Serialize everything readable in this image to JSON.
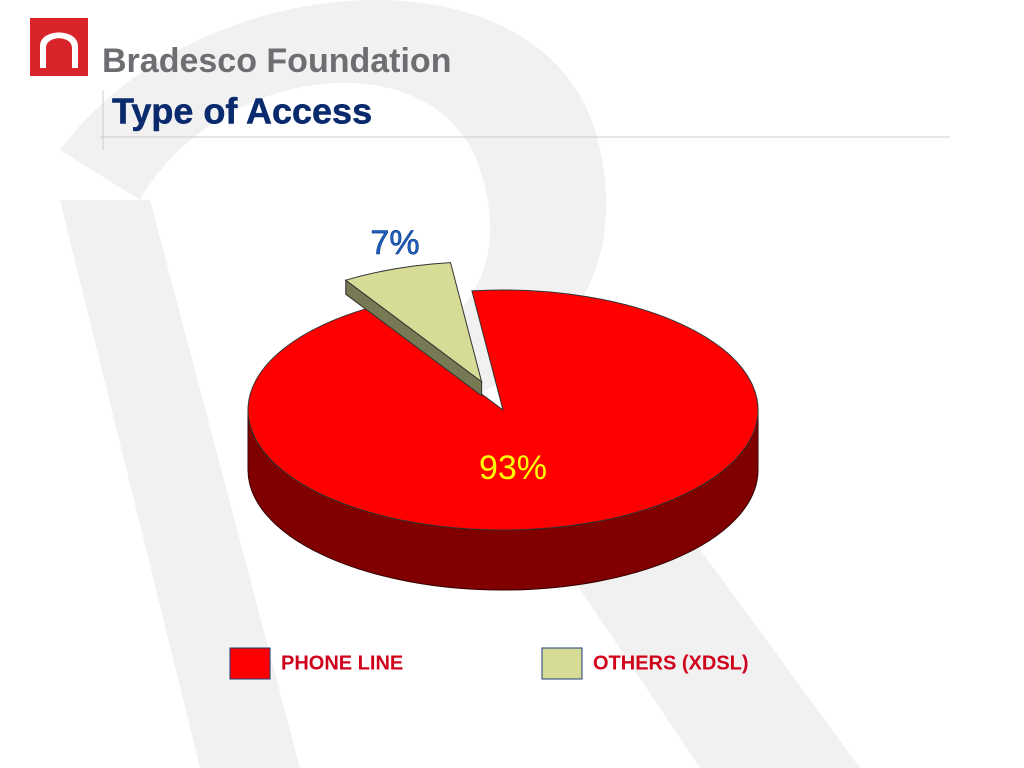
{
  "header": {
    "brand": "Bradesco Foundation"
  },
  "chart_data": {
    "type": "pie",
    "title": "Type of Access",
    "categories": [
      "PHONE LINE",
      "OTHERS (XDSL)"
    ],
    "values": [
      93,
      7
    ],
    "value_labels": [
      "93%",
      "7%"
    ],
    "colors": [
      "#ff0000",
      "#d6dc96"
    ],
    "label_colors": [
      "#ffff00",
      "#1f5fbf"
    ]
  }
}
